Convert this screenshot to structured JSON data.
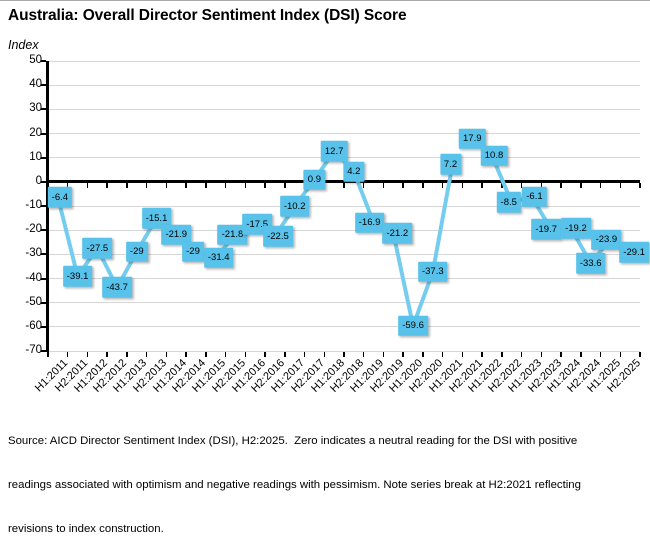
{
  "title": "Australia: Overall Director Sentiment Index (DSI) Score",
  "y_axis_title": "Index",
  "footer": {
    "line1": "Source: AICD Director Sentiment Index (DSI), H2:2025.  Zero indicates a neutral reading for the DSI with positive",
    "line2": "readings associated with optimism and negative readings with pessimism. Note series break at H2:2021 reflecting",
    "line3": "revisions to index construction."
  },
  "chart_data": {
    "type": "line",
    "title": "Australia: Overall Director Sentiment Index (DSI) Score",
    "ylabel": "Index",
    "categories": [
      "H1:2011",
      "H2:2011",
      "H1:2012",
      "H2:2012",
      "H1:2013",
      "H2:2013",
      "H1:2014",
      "H2:2014",
      "H1:2015",
      "H2:2015",
      "H1:2016",
      "H2:2016",
      "H1:2017",
      "H2:2017",
      "H1:2018",
      "H2:2018",
      "H1:2019",
      "H2:2019",
      "H1:2020",
      "H2:2020",
      "H1:2021",
      "H2:2021",
      "H1:2022",
      "H2:2022",
      "H1:2023",
      "H2:2023",
      "H1:2024",
      "H2:2024",
      "H1:2025",
      "H2:2025"
    ],
    "series": [
      {
        "name": "Overall DSI score",
        "values": [
          -6.4,
          -39.1,
          -27.5,
          -43.7,
          -29,
          -15.1,
          -21.9,
          -29,
          -31.4,
          -21.8,
          -17.5,
          -22.5,
          -10.2,
          0.9,
          12.7,
          4.2,
          -16.9,
          -21.2,
          -59.6,
          -37.3,
          7.2,
          17.9,
          10.8,
          -8.5,
          -6.1,
          -19.7,
          -19.2,
          -33.6,
          -23.9,
          -29.1
        ]
      }
    ],
    "ylim": [
      -70,
      50
    ],
    "ytick_step": 10,
    "grid": true,
    "legend": "none",
    "series_break_before": "H2:2021",
    "series_break_before_index": 21,
    "data_labels": "on",
    "colors": {
      "line": "#74CCEF",
      "label_box": "#58C2EA",
      "gridline": "#D6D6D6",
      "axis": "#000000"
    },
    "label_dx": [
      2,
      0,
      0,
      0,
      0,
      0,
      0,
      -3,
      3,
      -3,
      2,
      3,
      0,
      0,
      0,
      0,
      -4,
      4,
      0,
      0,
      -2,
      0,
      2,
      -3,
      3,
      -5,
      5,
      0,
      -4,
      4
    ]
  }
}
